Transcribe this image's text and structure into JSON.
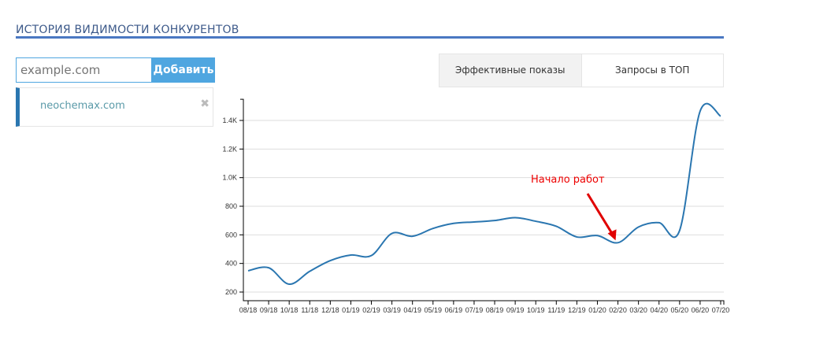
{
  "section_title": "ИСТОРИЯ ВИДИМОСТИ КОНКУРЕНТОВ",
  "add_form": {
    "placeholder": "example.com",
    "button": "Добавить"
  },
  "competitors": [
    {
      "domain": "neochemax.com",
      "remove_icon": "close-x-icon"
    }
  ],
  "tabs": [
    {
      "label": "Эффективные показы",
      "active": true
    },
    {
      "label": "Запросы в ТОП",
      "active": false
    }
  ],
  "colors": {
    "line": "#2a76b0",
    "accent": "#4fa6e0",
    "annotation": "#e00000"
  },
  "chart_data": {
    "type": "line",
    "categories": [
      "08/18",
      "09/18",
      "10/18",
      "11/18",
      "12/18",
      "01/19",
      "02/19",
      "03/19",
      "04/19",
      "05/19",
      "06/19",
      "07/19",
      "08/19",
      "09/19",
      "10/19",
      "11/19",
      "12/19",
      "01/20",
      "02/20",
      "03/20",
      "04/20",
      "05/20",
      "06/20",
      "07/20"
    ],
    "values": [
      349,
      370,
      255,
      345,
      420,
      459,
      455,
      610,
      590,
      645,
      680,
      690,
      700,
      720,
      695,
      660,
      585,
      595,
      545,
      655,
      685,
      630,
      1465,
      1430
    ],
    "yticks": [
      {
        "v": 200,
        "label": "200"
      },
      {
        "v": 400,
        "label": "400"
      },
      {
        "v": 600,
        "label": "600"
      },
      {
        "v": 800,
        "label": "800"
      },
      {
        "v": 1000,
        "label": "1.0K"
      },
      {
        "v": 1200,
        "label": "1.2K"
      },
      {
        "v": 1400,
        "label": "1.4K"
      }
    ],
    "ylim": [
      140,
      1548
    ],
    "grid": true,
    "annotation": {
      "text": "Начало работ",
      "target": "02/20"
    }
  }
}
